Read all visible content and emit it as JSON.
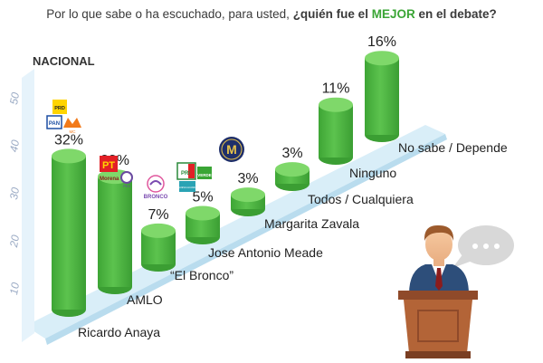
{
  "question": {
    "part1": "Por lo que sabe o ha escuchado, para usted, ",
    "part2": "¿quién fue el ",
    "keyword": "MEJOR",
    "part3": " en el debate?"
  },
  "section_label": "NACIONAL",
  "colors": {
    "bar": "#49b73f",
    "bar_top": "#7fd86a",
    "ramp": "#d7eef8",
    "keyword": "#3aa535"
  },
  "chart_data": {
    "type": "bar",
    "categories": [
      "Ricardo Anaya",
      "AMLO",
      "“El Bronco”",
      "Jose Antonio Meade",
      "Margarita Zavala",
      "Todos / Cualquiera",
      "Ninguno",
      "No sabe / Depende"
    ],
    "values": [
      32,
      23,
      7,
      5,
      3,
      3,
      11,
      16
    ],
    "value_labels": [
      "32%",
      "23%",
      "7%",
      "5%",
      "3%",
      "3%",
      "11%",
      "16%"
    ],
    "y_ticks": [
      10,
      20,
      30,
      40,
      50
    ],
    "ylim": [
      0,
      50
    ],
    "grid": false,
    "legend": "none"
  },
  "party_logos": {
    "pan": "PAN",
    "prd": "PRD",
    "mc": "MC",
    "pt": "PT",
    "morena": "Morena",
    "pes": "PES",
    "bronco": "BRONCO",
    "pri": "PRI",
    "verde": "VERDE",
    "nueva_alianza": "NUEVA ALIANZA",
    "zavala": "M"
  }
}
